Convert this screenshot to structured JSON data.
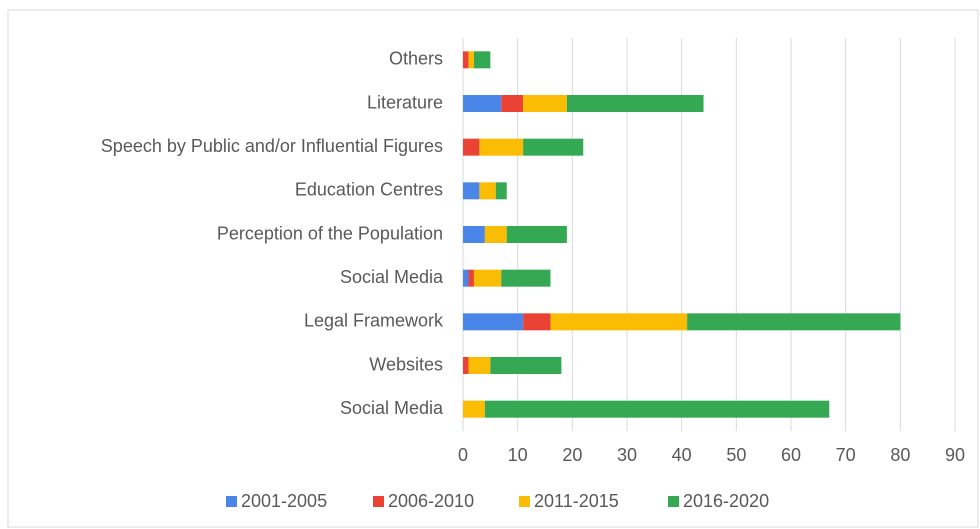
{
  "chart_data": {
    "type": "stacked_barh",
    "categories": [
      "Others",
      "Literature",
      "Speech by Public and/or Influential Figures",
      "Education Centres",
      "Perception of the Population",
      "Social Media",
      "Legal Framework",
      "Websites",
      "Social Media"
    ],
    "series": [
      {
        "name": "2001-2005",
        "color": "#4a86e8",
        "values": [
          0,
          7,
          0,
          3,
          4,
          1,
          11,
          0,
          0
        ]
      },
      {
        "name": "2006-2010",
        "color": "#ea4335",
        "values": [
          1,
          4,
          3,
          0,
          0,
          1,
          5,
          1,
          0
        ]
      },
      {
        "name": "2011-2015",
        "color": "#fbbc04",
        "values": [
          1,
          8,
          8,
          3,
          4,
          5,
          25,
          4,
          4
        ]
      },
      {
        "name": "2016-2020",
        "color": "#34a853",
        "values": [
          3,
          25,
          11,
          2,
          11,
          9,
          39,
          13,
          63
        ]
      }
    ],
    "xlim": [
      0,
      90
    ],
    "xticks": [
      0,
      10,
      20,
      30,
      40,
      50,
      60,
      70,
      80,
      90
    ],
    "grid": true,
    "legend": "bottom"
  }
}
